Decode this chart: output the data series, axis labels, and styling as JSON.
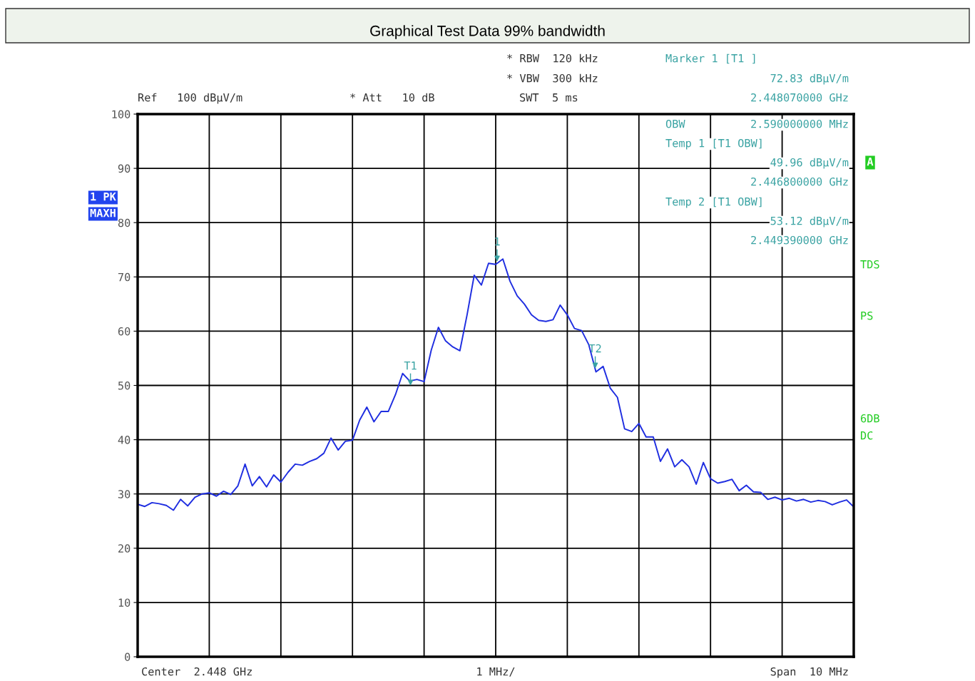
{
  "chart_data": {
    "type": "line",
    "title": "Graphical Test Data 99% bandwidth",
    "categories": [
      null,
      null,
      null,
      null,
      null,
      null,
      null,
      null,
      null,
      null,
      null,
      null,
      null,
      null,
      null,
      null,
      null,
      null,
      null,
      null,
      null,
      null,
      null,
      null,
      null,
      null,
      null,
      null,
      null,
      null,
      null,
      null,
      null,
      null,
      null,
      null,
      null,
      null,
      null,
      null,
      null,
      null,
      null,
      null,
      null,
      null,
      null,
      null,
      null,
      null,
      null,
      null,
      null,
      null,
      null,
      null,
      null,
      null,
      null,
      null,
      null,
      null,
      null,
      null,
      null,
      null,
      null,
      null,
      null,
      null,
      null,
      null,
      null,
      null,
      null,
      null,
      null,
      null,
      null,
      null,
      null,
      null,
      null,
      null,
      null,
      null,
      null,
      null,
      null,
      null,
      null,
      null,
      null,
      null,
      null,
      null,
      null,
      null,
      null,
      null,
      null
    ],
    "series": [
      {
        "color": "#1f2ee0",
        "values": [
          28.1,
          27.7,
          28.4,
          28.2,
          27.9,
          27.0,
          29.0,
          27.8,
          29.4,
          30.0,
          30.2,
          29.6,
          30.5,
          29.9,
          31.5,
          35.5,
          31.5,
          33.2,
          31.3,
          33.5,
          32.2,
          34.0,
          35.5,
          35.3,
          36.0,
          36.5,
          37.5,
          40.3,
          38.1,
          39.7,
          39.9,
          43.6,
          46.0,
          43.3,
          45.2,
          45.2,
          48.3,
          52.2,
          50.8,
          51.1,
          50.7,
          56.5,
          60.7,
          58.2,
          57.1,
          56.4,
          63.0,
          70.3,
          68.5,
          72.5,
          72.3,
          73.3,
          69.2,
          66.5,
          65.0,
          63.0,
          62.0,
          61.8,
          62.1,
          64.8,
          63.0,
          60.5,
          60.1,
          57.5,
          52.5,
          53.5,
          49.5,
          47.8,
          42.0,
          41.5,
          43.0,
          40.5,
          40.5,
          36.0,
          38.3,
          35.0,
          36.3,
          35.0,
          31.8,
          35.8,
          32.8,
          32.0,
          32.3,
          32.7,
          30.6,
          31.6,
          30.4,
          30.3,
          29.0,
          29.4,
          28.9,
          29.2,
          28.7,
          29.0,
          28.5,
          28.8,
          28.6,
          28.0,
          28.5,
          28.9,
          27.6
        ]
      }
    ],
    "ylim": [
      0,
      100
    ],
    "yticks": [
      0,
      10,
      20,
      30,
      40,
      50,
      60,
      70,
      80,
      90,
      100
    ],
    "grid": true,
    "line_style": "solid",
    "annotations": [
      {
        "text": "1",
        "y": 72.83
      },
      {
        "text": "T1",
        "y": 49.96
      },
      {
        "text": "T2",
        "y": 53.12
      },
      "Ref   100 dBµV/m",
      "* Att   10 dB",
      "* RBW  120 kHz",
      "* VBW  300 kHz",
      "SWT  5 ms",
      "Marker 1 [T1 ]",
      "72.83 dBµV/m",
      "2.448070000 GHz",
      "OBW",
      "2.590000000 MHz",
      "Temp 1 [T1 OBW]",
      "49.96 dBµV/m",
      "2.446800000 GHz",
      "Temp 2 [T1 OBW]",
      "53.12 dBµV/m",
      "2.449390000 GHz",
      "1 PK",
      "MAXH",
      "A",
      "TDS",
      "PS",
      "6DB",
      "DC",
      "Center  2.448 GHz",
      "1 MHz/",
      "Span  10 MHz"
    ]
  }
}
